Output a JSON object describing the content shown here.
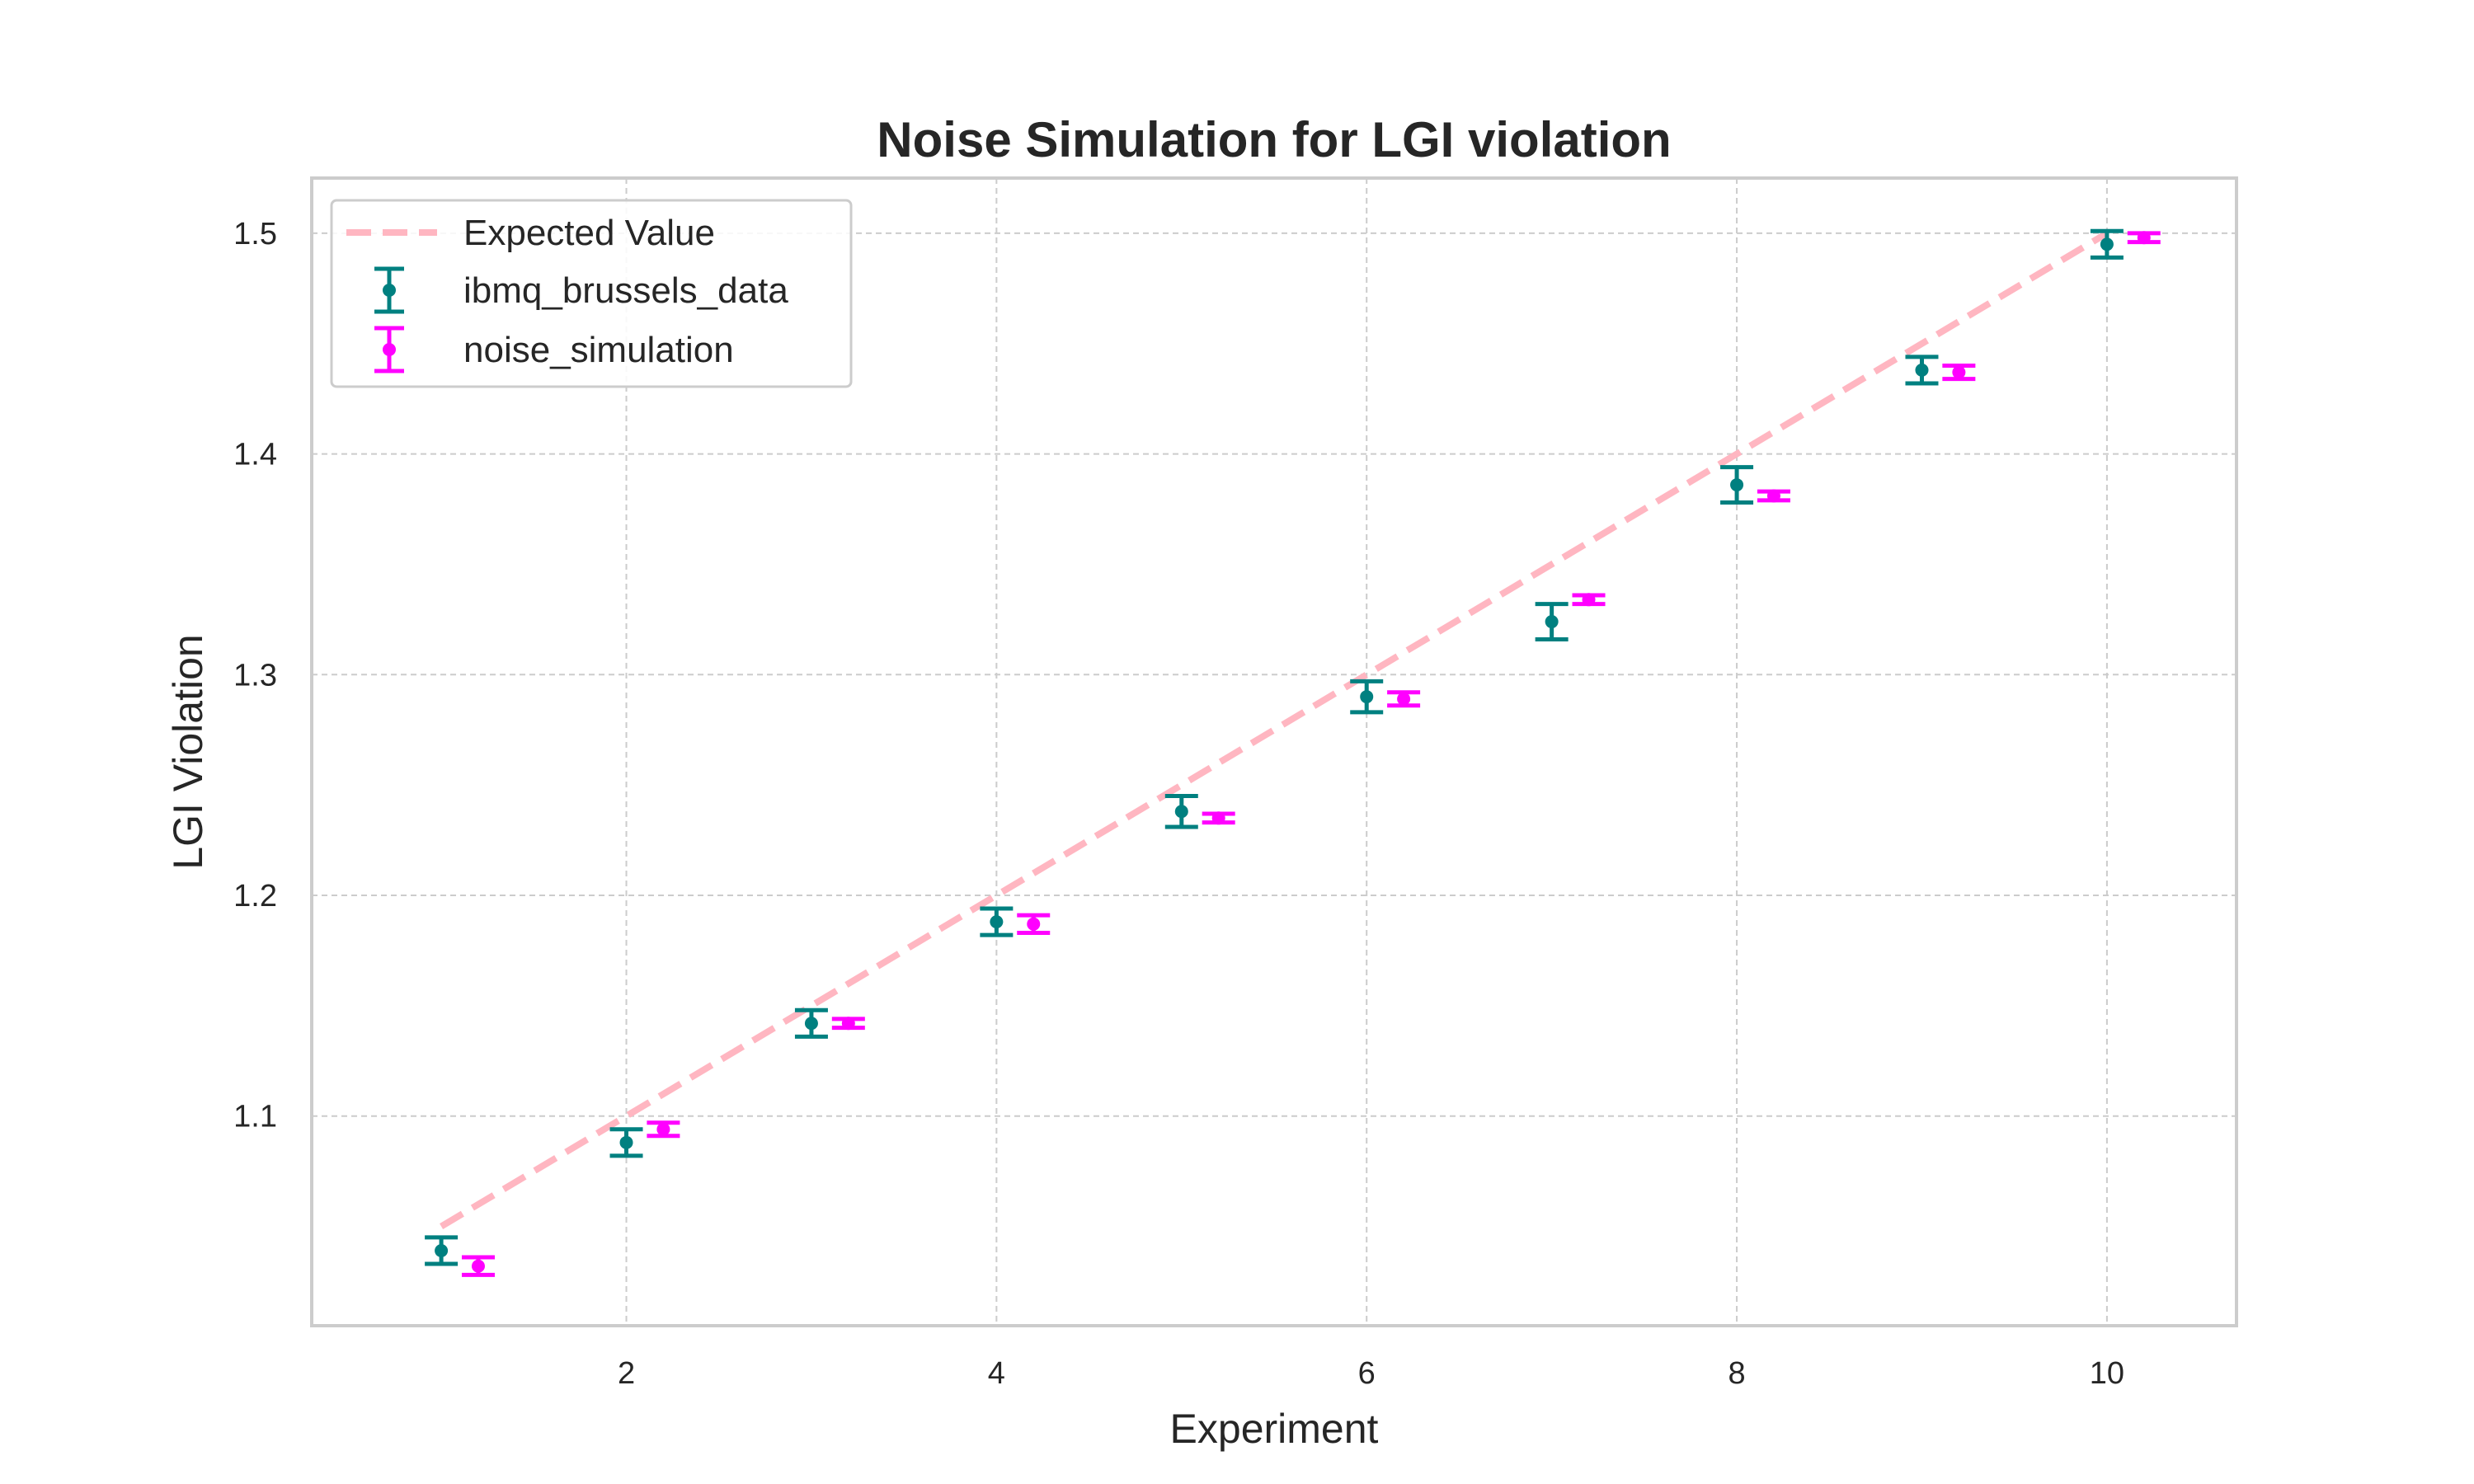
{
  "chart_data": {
    "type": "scatter",
    "title": "Noise Simulation for LGI violation",
    "xlabel": "Experiment",
    "ylabel": "LGI Violation",
    "xlim": [
      0.3,
      10.7
    ],
    "ylim": [
      1.005,
      1.525
    ],
    "x_ticks": [
      2,
      4,
      6,
      8,
      10
    ],
    "y_ticks": [
      1.1,
      1.2,
      1.3,
      1.4,
      1.5
    ],
    "grid": true,
    "legend_position": "top-left",
    "colors": {
      "expected": "#ffb6c1",
      "ibmq": "#008080",
      "noise": "#ff00ff"
    },
    "expected": {
      "name": "Expected Value",
      "x": [
        1,
        10
      ],
      "y": [
        1.05,
        1.5
      ]
    },
    "series": [
      {
        "name": "ibmq_brussels_data",
        "x": [
          1,
          2,
          3,
          4,
          5,
          6,
          7,
          8,
          9,
          10
        ],
        "y": [
          1.039,
          1.088,
          1.142,
          1.188,
          1.238,
          1.29,
          1.324,
          1.386,
          1.438,
          1.495
        ],
        "err": [
          0.006,
          0.006,
          0.006,
          0.006,
          0.007,
          0.007,
          0.008,
          0.008,
          0.006,
          0.006
        ]
      },
      {
        "name": "noise_simulation",
        "x": [
          1.2,
          2.2,
          3.2,
          4.2,
          5.2,
          6.2,
          7.2,
          8.2,
          9.2,
          10.2
        ],
        "y": [
          1.032,
          1.094,
          1.142,
          1.187,
          1.235,
          1.289,
          1.334,
          1.381,
          1.437,
          1.498
        ],
        "err": [
          0.004,
          0.003,
          0.002,
          0.004,
          0.002,
          0.003,
          0.002,
          0.002,
          0.003,
          0.002
        ]
      }
    ]
  }
}
